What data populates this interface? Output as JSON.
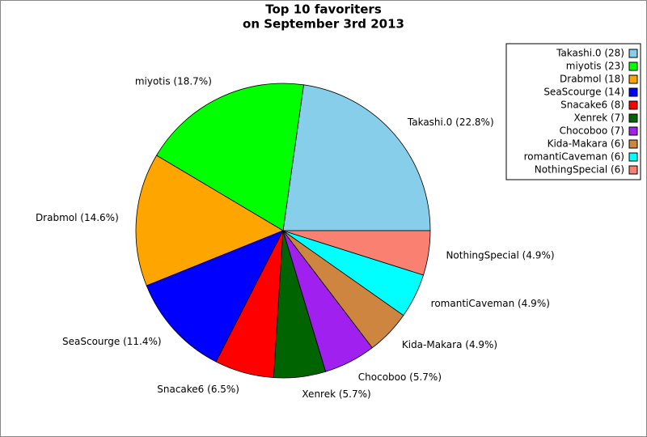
{
  "chart_data": {
    "type": "pie",
    "title": [
      "Top 10 favoriters",
      "on September 3rd 2013"
    ],
    "categories": [
      "Takashi.0",
      "miyotis",
      "Drabmol",
      "SeaScourge",
      "Snacake6",
      "Xenrek",
      "Chocoboo",
      "Kida-Makara",
      "romantiCaveman",
      "NothingSpecial"
    ],
    "values": [
      28,
      23,
      18,
      14,
      8,
      7,
      7,
      6,
      6,
      6
    ],
    "slice_labels": [
      "Takashi.0 (22.8%)",
      "miyotis (18.7%)",
      "Drabmol (14.6%)",
      "SeaScourge (11.4%)",
      "Snacake6 (6.5%)",
      "Xenrek (5.7%)",
      "Chocoboo (5.7%)",
      "Kida-Makara (4.9%)",
      "romantiCaveman (4.9%)",
      "NothingSpecial (4.9%)"
    ],
    "legend_labels": [
      "Takashi.0 (28)",
      "miyotis (23)",
      "Drabmol (18)",
      "SeaScourge (14)",
      "Snacake6 (8)",
      "Xenrek (7)",
      "Chocoboo (7)",
      "Kida-Makara (6)",
      "romantiCaveman (6)",
      "NothingSpecial (6)"
    ],
    "colors": [
      "#87ceeb",
      "#00ff00",
      "#ffa500",
      "#0000ff",
      "#ff0000",
      "#006400",
      "#a020f0",
      "#cd853f",
      "#00ffff",
      "#fa8072"
    ],
    "legend": "upper right"
  }
}
